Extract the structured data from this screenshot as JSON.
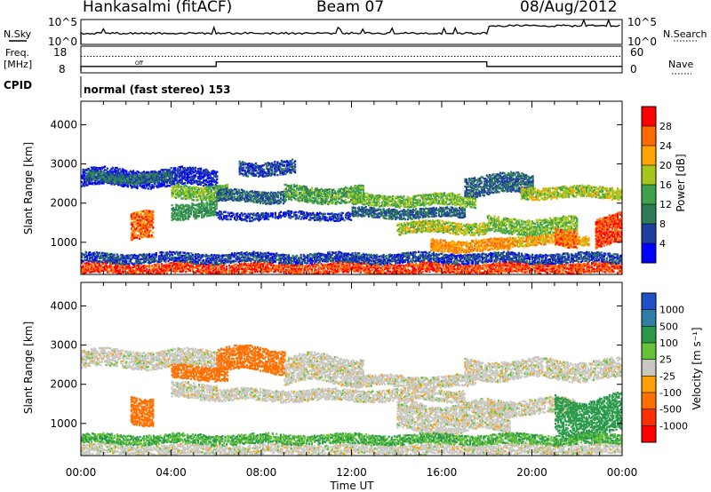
{
  "header": {
    "station": "Hankasalmi (fitACF)",
    "beam": "Beam 07",
    "date": "08/Aug/2012"
  },
  "noise_panel": {
    "left_label": "N.Sky",
    "right_label": "N.Search",
    "left_ticks": [
      "10^5",
      "10^0"
    ],
    "right_ticks": [
      "10^5",
      "10^0"
    ]
  },
  "freq_panel": {
    "left_label_1": "Freq.",
    "left_label_2": "[MHz]",
    "left_ticks": [
      "18",
      "8"
    ],
    "right_label": "Nave",
    "right_ticks": [
      "60",
      "0"
    ],
    "inline_label": "Off"
  },
  "cpid_panel": {
    "label": "CPID",
    "text": "normal (fast stereo) 153"
  },
  "power_panel": {
    "ylabel": "Slant Range [km]",
    "cb_label": "Power [dB]",
    "cb_ticks": [
      "28",
      "24",
      "20",
      "16",
      "12",
      "8",
      "4"
    ],
    "cb_colors": [
      "#ff0000",
      "#ff6a00",
      "#ffa500",
      "#a7c61a",
      "#3ea24a",
      "#2e7d56",
      "#1f3fa0",
      "#0000ff"
    ]
  },
  "velocity_panel": {
    "ylabel": "Slant Range [km]",
    "cb_label": "Velocity [m s⁻¹]",
    "cb_ticks": [
      "1000",
      "500",
      "100",
      "25",
      "-25",
      "-100",
      "-500",
      "-1000"
    ],
    "cb_colors": [
      "#2050c8",
      "#2e7ea8",
      "#2a9a4a",
      "#66c236",
      "#c8c8c0",
      "#ffa000",
      "#ff7000",
      "#ff3000",
      "#ff0000"
    ]
  },
  "x_axis": {
    "label": "Time UT",
    "ticks": [
      "00:00",
      "04:00",
      "08:00",
      "12:00",
      "16:00",
      "20:00",
      "00:00"
    ]
  },
  "chart_data": {
    "type": "heatmap",
    "xlabel": "Time UT",
    "ylabel": "Slant Range [km]",
    "x_range_hours": [
      0,
      24
    ],
    "y_range_km": [
      180,
      4600
    ],
    "y_ticks": [
      1000,
      2000,
      3000,
      4000
    ],
    "frequency_mhz": [
      {
        "t_start": 0,
        "t_end": 6,
        "value": 10
      },
      {
        "t_start": 6,
        "t_end": 18,
        "value": 12
      },
      {
        "t_start": 18,
        "t_end": 24,
        "value": 10
      }
    ],
    "nave": [
      {
        "t_start": 0,
        "t_end": 24,
        "value": 40
      }
    ],
    "noise_sky_level": [
      {
        "t_start": 0,
        "t_end": 18,
        "value": 0.45
      },
      {
        "t_start": 18,
        "t_end": 24,
        "value": 0.75
      }
    ],
    "power_db_range": [
      0,
      32
    ],
    "velocity_range": [
      -1000,
      1000
    ],
    "power_bands": [
      {
        "t0": 0.0,
        "t1": 6.0,
        "r0": 2400,
        "r1": 2850,
        "value": 4
      },
      {
        "t0": 0.2,
        "t1": 4.0,
        "r0": 2500,
        "r1": 2750,
        "value": 9
      },
      {
        "t0": 4.0,
        "t1": 6.5,
        "r0": 2100,
        "r1": 2450,
        "value": 16
      },
      {
        "t0": 6.0,
        "t1": 9.0,
        "r0": 2000,
        "r1": 2300,
        "value": 8
      },
      {
        "t0": 7.0,
        "t1": 9.5,
        "r0": 2700,
        "r1": 3050,
        "value": 6
      },
      {
        "t0": 9.0,
        "t1": 12.5,
        "r0": 2000,
        "r1": 2400,
        "value": 14
      },
      {
        "t0": 12.0,
        "t1": 17.5,
        "r0": 1900,
        "r1": 2200,
        "value": 16
      },
      {
        "t0": 17.0,
        "t1": 20.0,
        "r0": 2200,
        "r1": 2700,
        "value": 8
      },
      {
        "t0": 19.5,
        "t1": 24.0,
        "r0": 2100,
        "r1": 2400,
        "value": 18
      },
      {
        "t0": 2.2,
        "t1": 3.2,
        "r0": 1000,
        "r1": 1700,
        "value": 26
      },
      {
        "t0": 4.0,
        "t1": 6.0,
        "r0": 1600,
        "r1": 2000,
        "value": 12
      },
      {
        "t0": 6.0,
        "t1": 12.0,
        "r0": 1550,
        "r1": 1750,
        "value": 5
      },
      {
        "t0": 12.0,
        "t1": 17.0,
        "r0": 1600,
        "r1": 1850,
        "value": 8
      },
      {
        "t0": 14.0,
        "t1": 18.0,
        "r0": 1200,
        "r1": 1500,
        "value": 18
      },
      {
        "t0": 15.5,
        "t1": 19.0,
        "r0": 750,
        "r1": 1050,
        "value": 24
      },
      {
        "t0": 18.0,
        "t1": 22.0,
        "r0": 1200,
        "r1": 1600,
        "value": 16
      },
      {
        "t0": 19.0,
        "t1": 22.5,
        "r0": 900,
        "r1": 1150,
        "value": 22
      },
      {
        "t0": 22.8,
        "t1": 24.0,
        "r0": 900,
        "r1": 1650,
        "value": 28
      },
      {
        "t0": 21.0,
        "t1": 22.0,
        "r0": 900,
        "r1": 1350,
        "value": 26
      },
      {
        "t0": 0.0,
        "t1": 24.0,
        "r0": 180,
        "r1": 450,
        "value": 28
      },
      {
        "t0": 0.0,
        "t1": 24.0,
        "r0": 450,
        "r1": 700,
        "value": 6
      }
    ],
    "velocity_bands": [
      {
        "t0": 0.0,
        "t1": 6.0,
        "r0": 2400,
        "r1": 2850,
        "value": 0
      },
      {
        "t0": 4.0,
        "t1": 6.5,
        "r0": 2100,
        "r1": 2450,
        "value": -300
      },
      {
        "t0": 6.0,
        "t1": 9.0,
        "r0": 2300,
        "r1": 2900,
        "value": -300
      },
      {
        "t0": 9.0,
        "t1": 12.5,
        "r0": 2000,
        "r1": 2700,
        "value": 0
      },
      {
        "t0": 12.0,
        "t1": 17.5,
        "r0": 1900,
        "r1": 2200,
        "value": 0
      },
      {
        "t0": 17.0,
        "t1": 24.0,
        "r0": 2100,
        "r1": 2600,
        "value": 0
      },
      {
        "t0": 2.2,
        "t1": 3.2,
        "r0": 1000,
        "r1": 1700,
        "value": -300
      },
      {
        "t0": 4.0,
        "t1": 6.0,
        "r0": 1600,
        "r1": 2000,
        "value": 0
      },
      {
        "t0": 6.0,
        "t1": 17.0,
        "r0": 1550,
        "r1": 1850,
        "value": 0
      },
      {
        "t0": 14.0,
        "t1": 19.0,
        "r0": 750,
        "r1": 1500,
        "value": 0
      },
      {
        "t0": 18.0,
        "t1": 22.0,
        "r0": 1200,
        "r1": 1600,
        "value": 0
      },
      {
        "t0": 21.0,
        "t1": 24.0,
        "r0": 700,
        "r1": 1650,
        "value": 150
      },
      {
        "t0": 0.0,
        "t1": 24.0,
        "r0": 180,
        "r1": 450,
        "value": 0
      },
      {
        "t0": 0.0,
        "t1": 24.0,
        "r0": 450,
        "r1": 700,
        "value": 60
      }
    ]
  }
}
